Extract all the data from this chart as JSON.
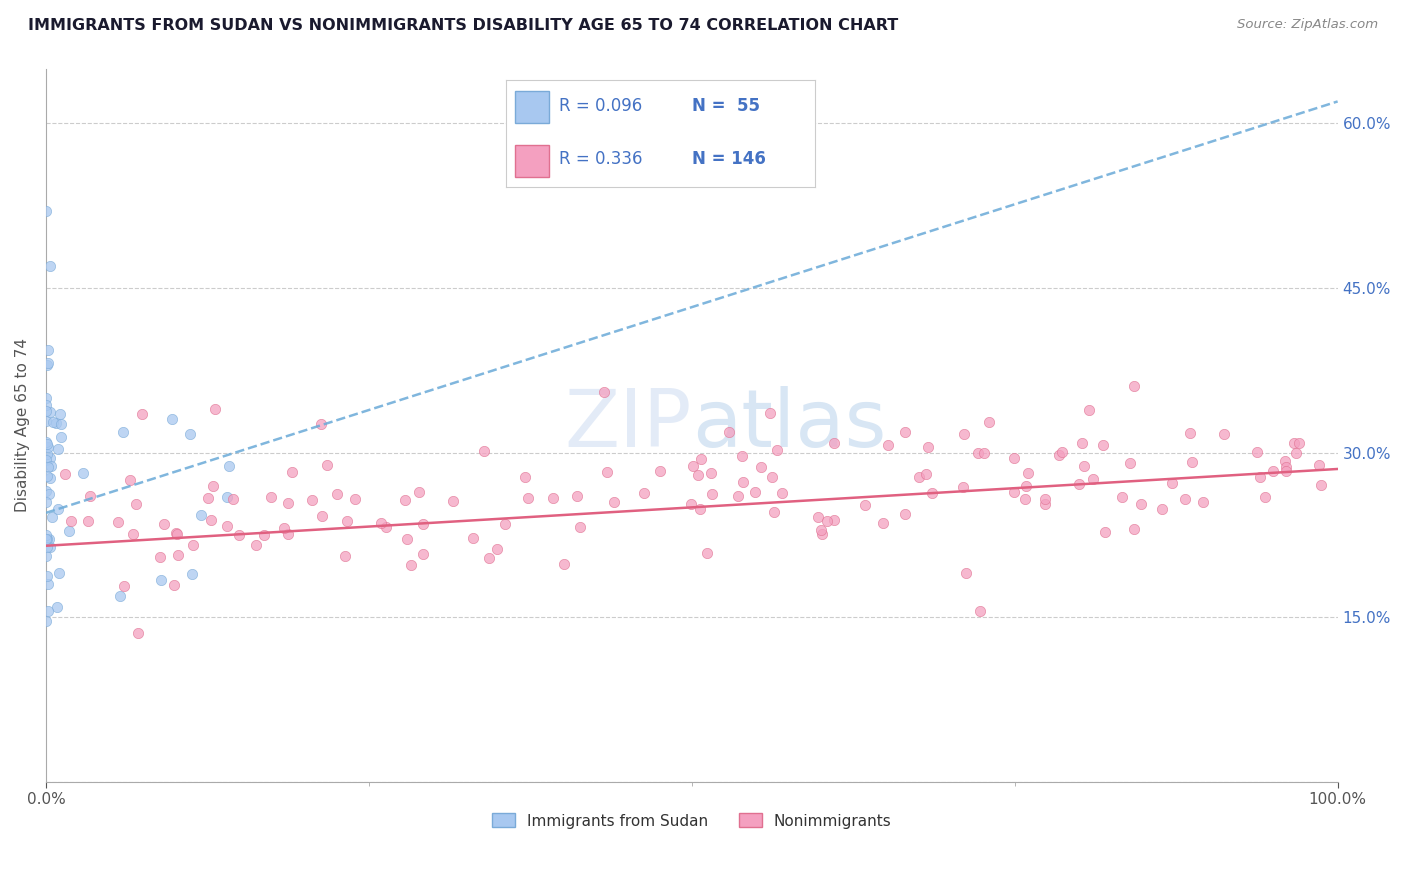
{
  "title": "IMMIGRANTS FROM SUDAN VS NONIMMIGRANTS DISABILITY AGE 65 TO 74 CORRELATION CHART",
  "source_text": "Source: ZipAtlas.com",
  "ylabel": "Disability Age 65 to 74",
  "xlim": [
    0.0,
    1.0
  ],
  "ylim": [
    0.0,
    0.65
  ],
  "yticks": [
    0.0,
    0.15,
    0.3,
    0.45,
    0.6
  ],
  "ytick_labels_right": [
    "",
    "15.0%",
    "30.0%",
    "45.0%",
    "60.0%"
  ],
  "xticks": [
    0.0,
    1.0
  ],
  "xtick_labels": [
    "0.0%",
    "100.0%"
  ],
  "scatter_blue": {
    "color": "#a8c8f0",
    "edgecolor": "#7aaad8",
    "size": 55,
    "alpha": 0.75
  },
  "scatter_pink": {
    "color": "#f4a0c0",
    "edgecolor": "#e07090",
    "size": 55,
    "alpha": 0.75
  },
  "trend_blue": {
    "x_start": 0.0,
    "x_end": 1.0,
    "y_start": 0.245,
    "y_end": 0.62,
    "color": "#6aaad8",
    "linewidth": 1.8,
    "linestyle": "--"
  },
  "trend_pink": {
    "x_start": 0.0,
    "x_end": 1.0,
    "y_start": 0.215,
    "y_end": 0.285,
    "color": "#e06080",
    "linewidth": 1.8,
    "linestyle": "-"
  },
  "legend_R_blue": "R = 0.096",
  "legend_N_blue": "N =  55",
  "legend_R_pink": "R = 0.336",
  "legend_N_pink": "N = 146",
  "watermark_zip": "ZIP",
  "watermark_atlas": "atlas",
  "background_color": "#ffffff",
  "grid_color": "#cccccc",
  "grid_linestyle": "--",
  "title_color": "#1a1a2e",
  "axis_label_color": "#4472c4",
  "legend_text_color": "#4472c4"
}
